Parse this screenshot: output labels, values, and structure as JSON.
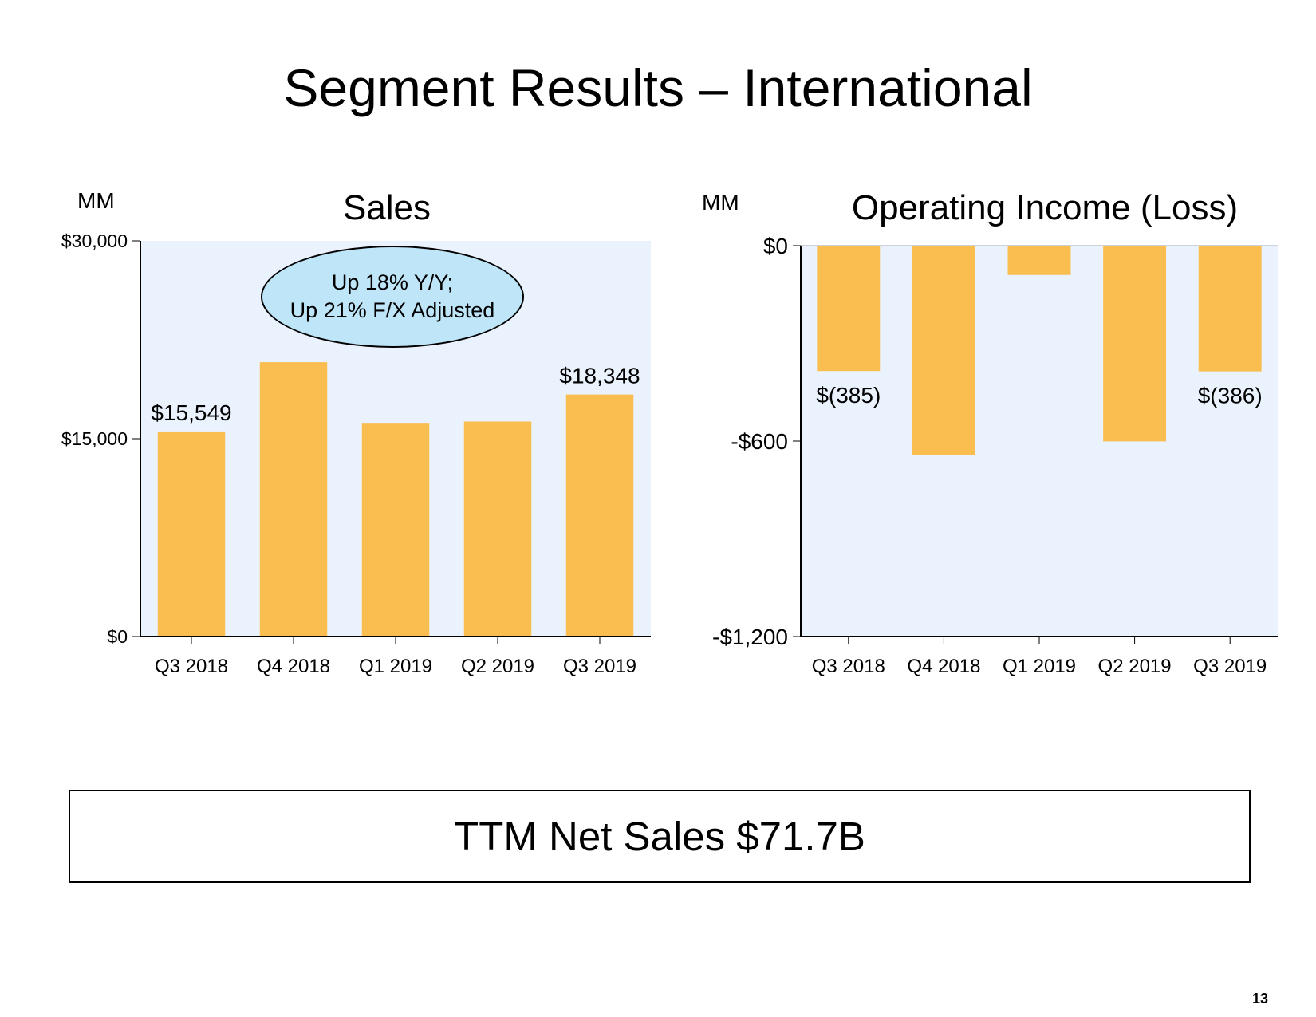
{
  "slide": {
    "title": "Segment Results – International",
    "ttm": "TTM Net Sales $71.7B",
    "page_number": "13"
  },
  "colors": {
    "bar": "#fabd50",
    "plot_bg": "#eaf3fd",
    "callout_bg": "#bfe5f9"
  },
  "chart_data": [
    {
      "type": "bar",
      "title": "Sales",
      "unit_label": "MM",
      "categories": [
        "Q3 2018",
        "Q4 2018",
        "Q1 2019",
        "Q2 2019",
        "Q3 2019"
      ],
      "values": [
        15549,
        20800,
        16200,
        16300,
        18348
      ],
      "data_labels": [
        "$15,549",
        "",
        "",
        "",
        "$18,348"
      ],
      "ylim": [
        0,
        30000
      ],
      "yticks": [
        0,
        15000,
        30000
      ],
      "ytick_labels": [
        "$0",
        "$15,000",
        "$30,000"
      ],
      "annotation": [
        "Up 18% Y/Y;",
        "Up 21% F/X Adjusted"
      ]
    },
    {
      "type": "bar",
      "title": "Operating Income (Loss)",
      "unit_label": "MM",
      "categories": [
        "Q3 2018",
        "Q4 2018",
        "Q1 2019",
        "Q2 2019",
        "Q3 2019"
      ],
      "values": [
        -385,
        -642,
        -90,
        -601,
        -386
      ],
      "data_labels": [
        "$(385)",
        "",
        "",
        "",
        "$(386)"
      ],
      "ylim": [
        -1200,
        0
      ],
      "yticks": [
        0,
        -600,
        -1200
      ],
      "ytick_labels": [
        "$0",
        "-$600",
        "-$1,200"
      ]
    }
  ]
}
